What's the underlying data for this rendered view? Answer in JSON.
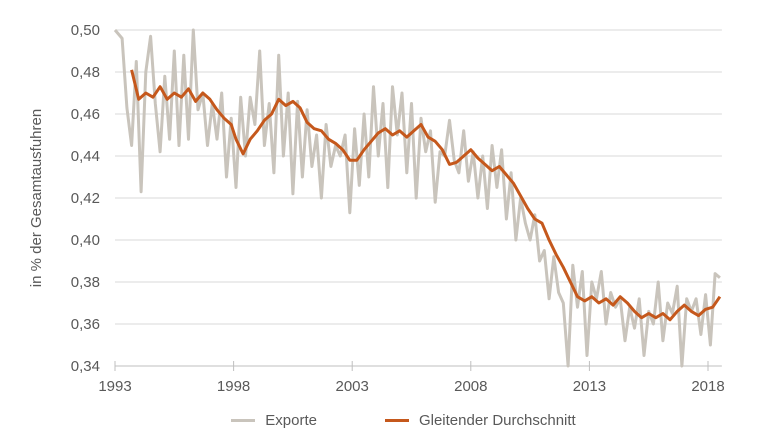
{
  "chart_data": {
    "type": "line",
    "title": "",
    "xlabel": "",
    "ylabel": "in % der Gesamtausfuhren",
    "ylim": [
      0.34,
      0.5
    ],
    "xlim": [
      1993,
      2018.5
    ],
    "yticks": [
      "0,34",
      "0,36",
      "0,38",
      "0,40",
      "0,42",
      "0,44",
      "0,46",
      "0,48",
      "0,50"
    ],
    "xticks": [
      "1993",
      "1998",
      "2003",
      "2008",
      "2013",
      "2018"
    ],
    "grid": "horizontal",
    "legend_position": "bottom",
    "series": [
      {
        "name": "Exporte",
        "color": "#c9c4bc",
        "x": [
          1993.0,
          1993.3,
          1993.5,
          1993.7,
          1993.9,
          1994.1,
          1994.3,
          1994.5,
          1994.7,
          1994.9,
          1995.1,
          1995.3,
          1995.5,
          1995.7,
          1995.9,
          1996.1,
          1996.3,
          1996.5,
          1996.7,
          1996.9,
          1997.1,
          1997.3,
          1997.5,
          1997.7,
          1997.9,
          1998.1,
          1998.3,
          1998.5,
          1998.7,
          1998.9,
          1999.1,
          1999.3,
          1999.5,
          1999.7,
          1999.9,
          2000.1,
          2000.3,
          2000.5,
          2000.7,
          2000.9,
          2001.1,
          2001.3,
          2001.5,
          2001.7,
          2001.9,
          2002.1,
          2002.3,
          2002.5,
          2002.7,
          2002.9,
          2003.1,
          2003.3,
          2003.5,
          2003.7,
          2003.9,
          2004.1,
          2004.3,
          2004.5,
          2004.7,
          2004.9,
          2005.1,
          2005.3,
          2005.5,
          2005.7,
          2005.9,
          2006.1,
          2006.3,
          2006.5,
          2006.7,
          2006.9,
          2007.1,
          2007.3,
          2007.5,
          2007.7,
          2007.9,
          2008.1,
          2008.3,
          2008.5,
          2008.7,
          2008.9,
          2009.1,
          2009.3,
          2009.5,
          2009.7,
          2009.9,
          2010.1,
          2010.3,
          2010.5,
          2010.7,
          2010.9,
          2011.1,
          2011.3,
          2011.5,
          2011.7,
          2011.9,
          2012.1,
          2012.3,
          2012.5,
          2012.7,
          2012.9,
          2013.1,
          2013.3,
          2013.5,
          2013.7,
          2013.9,
          2014.1,
          2014.3,
          2014.5,
          2014.7,
          2014.9,
          2015.1,
          2015.3,
          2015.5,
          2015.7,
          2015.9,
          2016.1,
          2016.3,
          2016.5,
          2016.7,
          2016.9,
          2017.1,
          2017.3,
          2017.5,
          2017.7,
          2017.9,
          2018.1,
          2018.3,
          2018.5
        ],
        "values": [
          0.5,
          0.496,
          0.463,
          0.445,
          0.485,
          0.423,
          0.48,
          0.497,
          0.465,
          0.442,
          0.478,
          0.448,
          0.49,
          0.445,
          0.488,
          0.448,
          0.5,
          0.462,
          0.47,
          0.445,
          0.465,
          0.448,
          0.47,
          0.43,
          0.458,
          0.425,
          0.468,
          0.44,
          0.468,
          0.455,
          0.49,
          0.445,
          0.465,
          0.432,
          0.488,
          0.44,
          0.47,
          0.422,
          0.466,
          0.43,
          0.462,
          0.435,
          0.45,
          0.42,
          0.455,
          0.435,
          0.445,
          0.44,
          0.45,
          0.413,
          0.453,
          0.426,
          0.46,
          0.43,
          0.473,
          0.44,
          0.465,
          0.425,
          0.473,
          0.45,
          0.47,
          0.432,
          0.465,
          0.42,
          0.458,
          0.442,
          0.452,
          0.418,
          0.442,
          0.44,
          0.457,
          0.438,
          0.432,
          0.452,
          0.428,
          0.442,
          0.42,
          0.44,
          0.415,
          0.445,
          0.425,
          0.443,
          0.41,
          0.432,
          0.4,
          0.42,
          0.408,
          0.4,
          0.412,
          0.39,
          0.395,
          0.372,
          0.392,
          0.375,
          0.37,
          0.34,
          0.388,
          0.368,
          0.385,
          0.345,
          0.38,
          0.372,
          0.385,
          0.36,
          0.375,
          0.368,
          0.372,
          0.352,
          0.368,
          0.358,
          0.372,
          0.345,
          0.366,
          0.36,
          0.38,
          0.352,
          0.37,
          0.365,
          0.378,
          0.34,
          0.372,
          0.366,
          0.372,
          0.355,
          0.374,
          0.35,
          0.384,
          0.382
        ]
      },
      {
        "name": "Gleitender Durchschnitt",
        "color": "#c5581c",
        "x": [
          1993.7,
          1994.0,
          1994.3,
          1994.6,
          1994.9,
          1995.2,
          1995.5,
          1995.8,
          1996.1,
          1996.4,
          1996.7,
          1997.0,
          1997.3,
          1997.6,
          1997.9,
          1998.1,
          1998.4,
          1998.7,
          1999.0,
          1999.3,
          1999.6,
          1999.9,
          2000.2,
          2000.5,
          2000.8,
          2001.1,
          2001.4,
          2001.7,
          2002.0,
          2002.3,
          2002.6,
          2002.9,
          2003.2,
          2003.5,
          2003.8,
          2004.1,
          2004.4,
          2004.7,
          2005.0,
          2005.3,
          2005.6,
          2005.9,
          2006.2,
          2006.5,
          2006.8,
          2007.1,
          2007.4,
          2007.7,
          2008.0,
          2008.3,
          2008.6,
          2008.9,
          2009.2,
          2009.5,
          2009.8,
          2010.1,
          2010.4,
          2010.7,
          2011.0,
          2011.3,
          2011.6,
          2011.9,
          2012.2,
          2012.5,
          2012.8,
          2013.1,
          2013.4,
          2013.7,
          2014.0,
          2014.3,
          2014.6,
          2014.9,
          2015.2,
          2015.5,
          2015.8,
          2016.1,
          2016.4,
          2016.7,
          2017.0,
          2017.3,
          2017.6,
          2017.9,
          2018.2,
          2018.5
        ],
        "values": [
          0.481,
          0.467,
          0.47,
          0.468,
          0.473,
          0.467,
          0.47,
          0.468,
          0.472,
          0.466,
          0.47,
          0.467,
          0.462,
          0.458,
          0.455,
          0.448,
          0.441,
          0.448,
          0.452,
          0.457,
          0.46,
          0.467,
          0.464,
          0.466,
          0.463,
          0.456,
          0.453,
          0.452,
          0.448,
          0.446,
          0.443,
          0.438,
          0.438,
          0.443,
          0.447,
          0.451,
          0.453,
          0.45,
          0.452,
          0.449,
          0.452,
          0.455,
          0.449,
          0.447,
          0.443,
          0.436,
          0.437,
          0.44,
          0.443,
          0.439,
          0.436,
          0.433,
          0.435,
          0.431,
          0.427,
          0.421,
          0.415,
          0.41,
          0.408,
          0.4,
          0.393,
          0.387,
          0.38,
          0.373,
          0.371,
          0.373,
          0.37,
          0.372,
          0.369,
          0.373,
          0.37,
          0.366,
          0.363,
          0.365,
          0.363,
          0.365,
          0.362,
          0.366,
          0.369,
          0.366,
          0.364,
          0.367,
          0.368,
          0.373
        ]
      }
    ]
  },
  "legend": {
    "items": [
      {
        "label": "Exporte",
        "color": "#c9c4bc"
      },
      {
        "label": "Gleitender Durchschnitt",
        "color": "#c5581c"
      }
    ]
  }
}
